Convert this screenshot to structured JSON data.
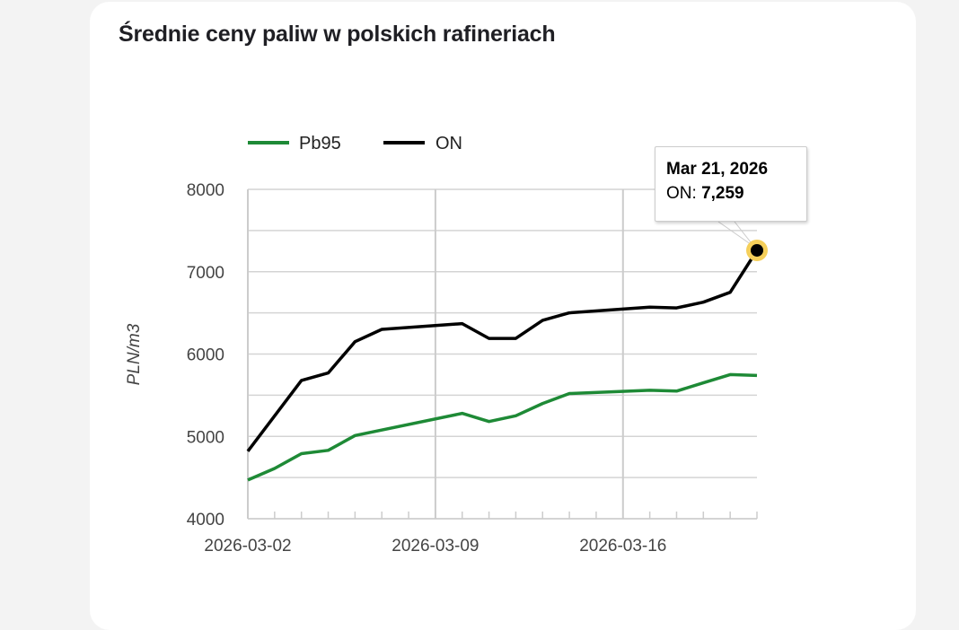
{
  "page": {
    "title": "Średnie ceny paliw w polskich rafineriach"
  },
  "legend": [
    {
      "label": "Pb95",
      "color": "#1e8a36"
    },
    {
      "label": "ON",
      "color": "#000000"
    }
  ],
  "tooltip": {
    "date": "Mar 21, 2026",
    "series_label": "ON:",
    "value": "7,259",
    "highlight_color": "#f5cf5a"
  },
  "axes": {
    "ylabel": "PLN/m3",
    "y_ticks": [
      "8000",
      "7000",
      "6000",
      "5000",
      "4000"
    ],
    "x_ticks": [
      "2026-03-02",
      "2026-03-09",
      "2026-03-16"
    ]
  },
  "chart_data": {
    "type": "line",
    "title": "Średnie ceny paliw w polskich rafineriach",
    "xlabel": "",
    "ylabel": "PLN/m3",
    "ylim": [
      4000,
      8000
    ],
    "xlim": [
      "2026-03-02",
      "2026-03-21"
    ],
    "y_ticks": [
      4000,
      5000,
      6000,
      7000,
      8000
    ],
    "x_ticks": [
      "2026-03-02",
      "2026-03-09",
      "2026-03-16"
    ],
    "grid": true,
    "legend_position": "top",
    "series": [
      {
        "name": "Pb95",
        "color": "#1e8a36",
        "points": [
          {
            "x": "2026-03-02",
            "y": 4470
          },
          {
            "x": "2026-03-03",
            "y": 4610
          },
          {
            "x": "2026-03-04",
            "y": 4790
          },
          {
            "x": "2026-03-05",
            "y": 4830
          },
          {
            "x": "2026-03-06",
            "y": 5010
          },
          {
            "x": "2026-03-10",
            "y": 5280
          },
          {
            "x": "2026-03-11",
            "y": 5180
          },
          {
            "x": "2026-03-12",
            "y": 5250
          },
          {
            "x": "2026-03-13",
            "y": 5400
          },
          {
            "x": "2026-03-14",
            "y": 5520
          },
          {
            "x": "2026-03-17",
            "y": 5560
          },
          {
            "x": "2026-03-18",
            "y": 5550
          },
          {
            "x": "2026-03-19",
            "y": 5650
          },
          {
            "x": "2026-03-20",
            "y": 5750
          },
          {
            "x": "2026-03-21",
            "y": 5740
          }
        ]
      },
      {
        "name": "ON",
        "color": "#000000",
        "points": [
          {
            "x": "2026-03-02",
            "y": 4820
          },
          {
            "x": "2026-03-04",
            "y": 5680
          },
          {
            "x": "2026-03-05",
            "y": 5770
          },
          {
            "x": "2026-03-06",
            "y": 6150
          },
          {
            "x": "2026-03-07",
            "y": 6300
          },
          {
            "x": "2026-03-10",
            "y": 6370
          },
          {
            "x": "2026-03-11",
            "y": 6190
          },
          {
            "x": "2026-03-12",
            "y": 6190
          },
          {
            "x": "2026-03-13",
            "y": 6410
          },
          {
            "x": "2026-03-14",
            "y": 6500
          },
          {
            "x": "2026-03-17",
            "y": 6570
          },
          {
            "x": "2026-03-18",
            "y": 6560
          },
          {
            "x": "2026-03-19",
            "y": 6630
          },
          {
            "x": "2026-03-20",
            "y": 6750
          },
          {
            "x": "2026-03-21",
            "y": 7259
          }
        ]
      }
    ],
    "annotations": [
      {
        "type": "tooltip",
        "x": "2026-03-21",
        "series": "ON",
        "text": "Mar 21, 2026 — ON: 7,259"
      }
    ]
  }
}
